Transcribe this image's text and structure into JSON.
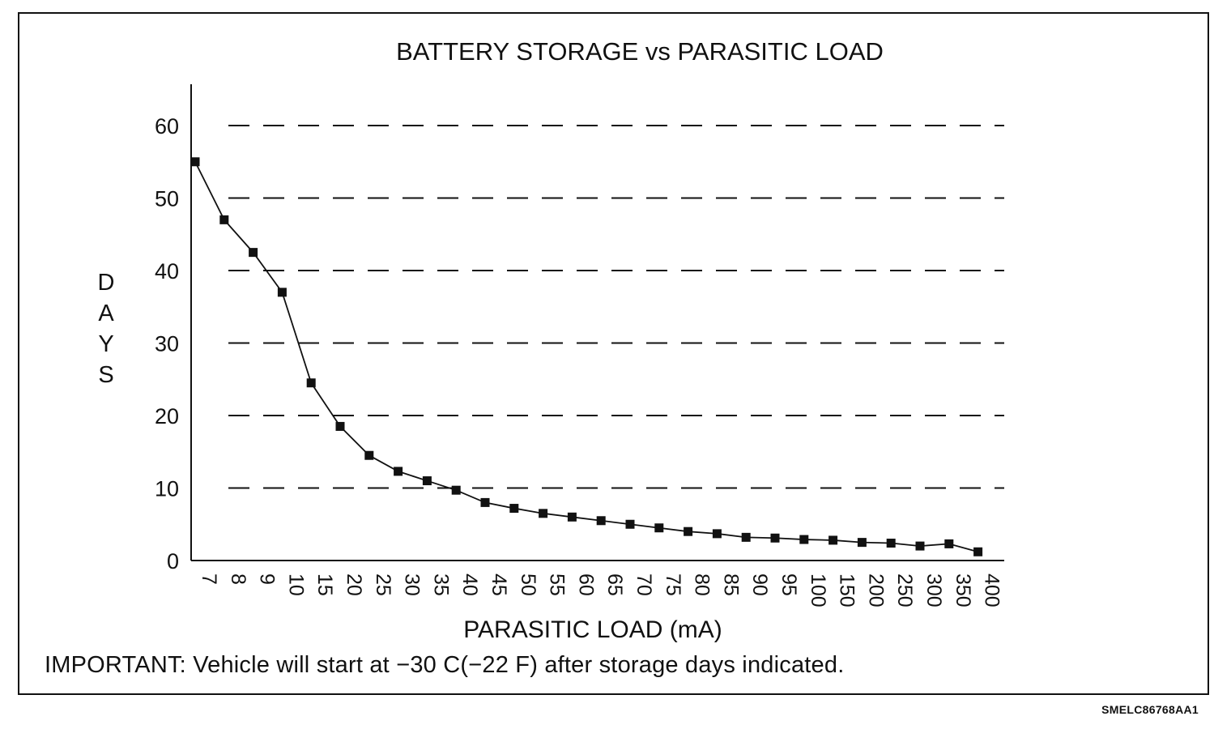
{
  "chart_data": {
    "type": "line",
    "title": "BATTERY STORAGE vs PARASITIC LOAD",
    "xlabel": "PARASITIC LOAD (mA)",
    "ylabel": "DAYS",
    "categories": [
      "7",
      "8",
      "9",
      "10",
      "15",
      "20",
      "25",
      "30",
      "35",
      "40",
      "45",
      "50",
      "55",
      "60",
      "65",
      "70",
      "75",
      "80",
      "85",
      "90",
      "95",
      "100",
      "150",
      "200",
      "250",
      "300",
      "350",
      "400"
    ],
    "series": [
      {
        "values": [
          55,
          47,
          42.5,
          37,
          24.5,
          18.5,
          14.5,
          12.3,
          11,
          9.7,
          8,
          7.2,
          6.5,
          6,
          5.5,
          5,
          4.5,
          4,
          3.7,
          3.2,
          3.1,
          2.9,
          2.8,
          2.5,
          2.4,
          2,
          2.3,
          1.2
        ]
      }
    ],
    "yticks": [
      0,
      10,
      20,
      30,
      40,
      50,
      60
    ],
    "ylim": [
      0,
      66
    ],
    "grid": "horizontal-dashed",
    "legend": "none",
    "marker": "square",
    "line_color": "#111111"
  },
  "footnote": "IMPORTANT: Vehicle will start at −30 C(−22 F) after storage days indicated.",
  "figure_id": "SMELC86768AA1"
}
